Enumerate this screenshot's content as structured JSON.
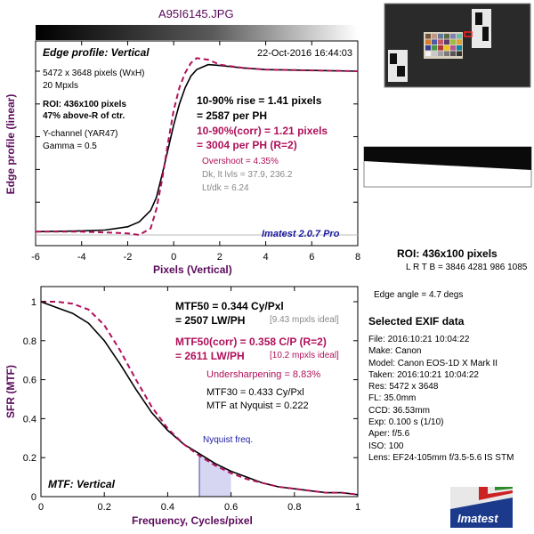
{
  "window": {
    "filename": "A95I6145.JPG"
  },
  "edge_panel": {
    "title": "Edge profile: Vertical",
    "datetime": "22-Oct-2016 16:44:03",
    "info": [
      "5472 x 3648 pixels (WxH)",
      "20 Mpxls"
    ],
    "roi": [
      "ROI: 436x100 pixels",
      "47% above-R of ctr."
    ],
    "channel": [
      "Y-channel  (YAR47)",
      "Gamma = 0.5"
    ],
    "rise": [
      "10-90% rise = 1.41 pixels",
      "= 2587 per PH"
    ],
    "rise_corr": [
      "10-90%(corr) = 1.21 pixels",
      "= 3004 per PH  (R=2)"
    ],
    "overshoot": "Overshoot = 4.35%",
    "levels": [
      "Dk, lt lvls = 37.9, 236.2",
      "Lt/dk = 6.24"
    ],
    "brand": "Imatest 2.0.7 Pro"
  },
  "mtf_panel": {
    "title": "MTF: Vertical",
    "mtf50": [
      "MTF50 = 0.344 Cy/Pxl",
      "= 2507 LW/PH"
    ],
    "mtf50_ideal": "[9.43 mpxls ideal]",
    "mtf50_corr": [
      "MTF50(corr) = 0.358 C/P  (R=2)",
      "= 2611 LW/PH"
    ],
    "mtf50_corr_ideal": "[10.2 mpxls ideal]",
    "undersharpening": "Undersharpening = 8.83%",
    "mtf30": "MTF30 = 0.433 Cy/Pxl",
    "nyquist_mtf": "MTF at Nyquist = 0.222",
    "nyquist_label": "Nyquist freq."
  },
  "side": {
    "roi_title": "ROI: 436x100 pixels",
    "roi_coords": "L R  T B = 3846 4281  986 1085",
    "edge_angle": "Edge angle = 4.7 degs",
    "exif_title": "Selected EXIF data",
    "exif": [
      "File:  2016:10:21 10:04:22",
      "Make:  Canon",
      "Model:  Canon EOS-1D X Mark II",
      "Taken:  2016:10:21 10:04:22",
      "Res:   5472 x 3648",
      "FL:   35.0mm",
      "CCD:   36.53mm",
      "Exp:   0.100 s  (1/10)",
      "Aper:   f/5.6",
      "ISO:   100",
      "Lens:  EF24-105mm f/3.5-5.6 IS STM"
    ],
    "logo_text": "Imatest"
  },
  "colors": {
    "title": "#5a0a5a",
    "corr": "#b0105a",
    "gray": "#888888",
    "brand": "#1a1aa0"
  },
  "chart_data": [
    {
      "type": "line",
      "title": "Edge profile: Vertical",
      "xlabel": "Pixels (Vertical)",
      "ylabel": "Edge profile (linear)",
      "xlim": [
        -6,
        8
      ],
      "xticks": [
        -6,
        -4,
        -2,
        0,
        2,
        4,
        6,
        8
      ],
      "ylim": [
        0,
        1.2
      ],
      "series": [
        {
          "style": "solid black",
          "x": [
            -6,
            -4,
            -3,
            -2,
            -1.5,
            -1,
            -0.75,
            -0.5,
            -0.25,
            0,
            0.25,
            0.5,
            0.75,
            1,
            1.5,
            2,
            3,
            4,
            6,
            8
          ],
          "y": [
            0.02,
            0.025,
            0.03,
            0.05,
            0.08,
            0.15,
            0.23,
            0.37,
            0.52,
            0.67,
            0.8,
            0.9,
            0.97,
            1.01,
            1.04,
            1.035,
            1.02,
            1.01,
            1.005,
            1.0
          ]
        },
        {
          "style": "dashed corrected",
          "x": [
            -6,
            -4,
            -3,
            -2,
            -1.5,
            -1,
            -0.75,
            -0.5,
            -0.25,
            0,
            0.25,
            0.5,
            0.75,
            1,
            1.5,
            2,
            3,
            4,
            6,
            8
          ],
          "y": [
            0.02,
            0.02,
            0.015,
            0.01,
            0.0,
            0.04,
            0.16,
            0.34,
            0.56,
            0.76,
            0.9,
            0.99,
            1.05,
            1.08,
            1.07,
            1.04,
            1.02,
            1.01,
            1.005,
            1.0
          ]
        }
      ]
    },
    {
      "type": "line",
      "title": "MTF: Vertical",
      "xlabel": "Frequency, Cycles/pixel",
      "ylabel": "SFR (MTF)",
      "xlim": [
        0,
        1
      ],
      "xticks": [
        0,
        0.2,
        0.4,
        0.6,
        0.8,
        1
      ],
      "ylim": [
        0,
        1.05
      ],
      "yticks": [
        0,
        0.2,
        0.4,
        0.6,
        0.8,
        1
      ],
      "nyquist": 0.5,
      "series": [
        {
          "style": "solid black",
          "x": [
            0,
            0.05,
            0.1,
            0.15,
            0.2,
            0.25,
            0.3,
            0.35,
            0.4,
            0.45,
            0.5,
            0.55,
            0.6,
            0.65,
            0.7,
            0.75,
            0.8,
            0.85,
            0.9,
            0.95,
            1.0
          ],
          "y": [
            1.0,
            0.97,
            0.94,
            0.89,
            0.8,
            0.68,
            0.55,
            0.43,
            0.34,
            0.27,
            0.22,
            0.17,
            0.13,
            0.1,
            0.07,
            0.05,
            0.04,
            0.03,
            0.02,
            0.02,
            0.01
          ]
        },
        {
          "style": "dashed corrected",
          "x": [
            0,
            0.05,
            0.1,
            0.15,
            0.2,
            0.25,
            0.3,
            0.35,
            0.4,
            0.45,
            0.5,
            0.55,
            0.6,
            0.65,
            0.7,
            0.75,
            0.8,
            0.85,
            0.9,
            0.95,
            1.0
          ],
          "y": [
            1.0,
            1.0,
            0.99,
            0.96,
            0.88,
            0.75,
            0.6,
            0.46,
            0.35,
            0.27,
            0.21,
            0.16,
            0.12,
            0.09,
            0.07,
            0.05,
            0.04,
            0.03,
            0.02,
            0.02,
            0.01
          ]
        }
      ]
    }
  ]
}
